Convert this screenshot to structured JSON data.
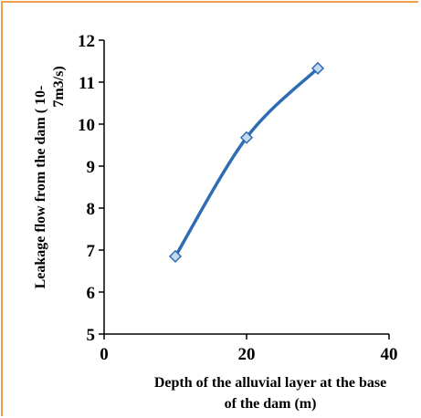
{
  "colors": {
    "border": "#f0a04b",
    "line": "#2e6db4",
    "marker_fill": "#c5daf1",
    "axis": "#000000"
  },
  "chart_data": {
    "type": "line",
    "x": [
      10,
      20,
      30
    ],
    "series": [
      {
        "values": [
          6.85,
          9.68,
          11.33
        ]
      }
    ],
    "xlabel_lines": [
      "Depth of the alluvial layer at the base",
      "of the dam (m)"
    ],
    "ylabel_lines": [
      "Leakage flow from the dam ( 10-",
      "7m3/s)"
    ],
    "xlim": [
      0,
      40
    ],
    "ylim": [
      5,
      12
    ],
    "x_ticks": [
      "0",
      "20",
      "40"
    ],
    "y_ticks": [
      "5",
      "6",
      "7",
      "8",
      "9",
      "10",
      "11",
      "12"
    ],
    "grid": false,
    "legend": "none",
    "smooth": true,
    "marker": "diamond"
  }
}
